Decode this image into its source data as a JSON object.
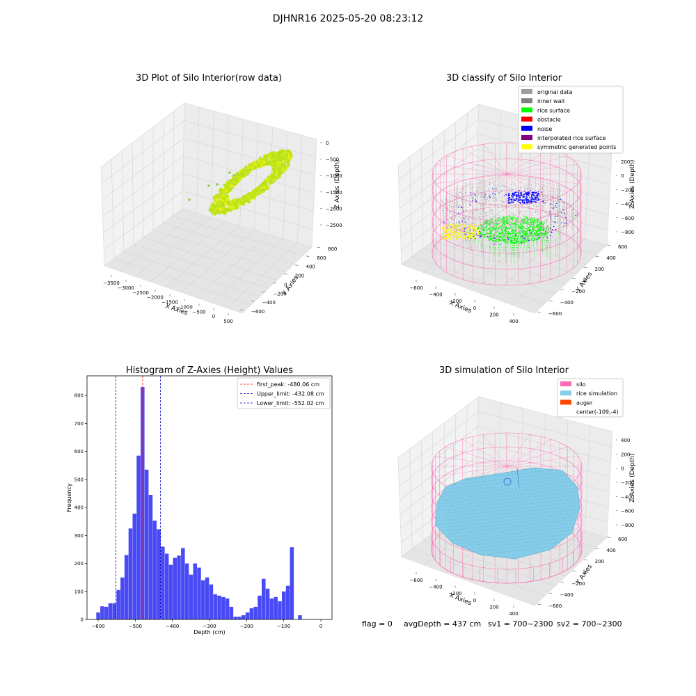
{
  "suptitle": "DJHNR16 2025-05-20 08:23:12",
  "footer": {
    "flag": "flag = 0",
    "avg": "avgDepth = 437 cm",
    "sv1": "sv1 = 700~2300",
    "sv2": "sv2 = 700~2300"
  },
  "colors": {
    "gray_pts": "#9e9e9e",
    "inner_wall": "#808080",
    "rice_green": "#00ff00",
    "obstacle": "#ff0000",
    "noise": "#0000ff",
    "interp": "#800080",
    "symmetric": "#ffff00",
    "silo_pink": "#ff69b4",
    "rice_sim": "#87ceeb",
    "auger": "#ff4500",
    "hist_bar": "#4a4af5"
  },
  "chart_data": [
    {
      "type": "scatter3d",
      "title": "3D Plot of Silo Interior(row data)",
      "xlabel": "X Axies",
      "ylabel": "Y Axies",
      "zlabel": "Z Axies (Depth)",
      "xticks": [
        "−3500",
        "−3000",
        "−2500",
        "−2000",
        "−1500",
        "−1000",
        "−500",
        "0",
        "500"
      ],
      "yticks": [
        "−600",
        "−400",
        "−200",
        "0",
        "200",
        "400",
        "600",
        "800"
      ],
      "zticks": [
        "0",
        "−500",
        "−1000",
        "−1500",
        "−2000",
        "−2500"
      ]
    },
    {
      "type": "scatter3d",
      "title": "3D classify of Silo Interior",
      "xlabel": "X Axies",
      "ylabel": "Y Axies",
      "zlabel": "Z Axies (Depth)",
      "xticks": [
        "−600",
        "−400",
        "−200",
        "0",
        "200",
        "400"
      ],
      "yticks": [
        "−600",
        "−400",
        "−200",
        "0",
        "200",
        "400",
        "600"
      ],
      "zticks": [
        "200",
        "0",
        "−200",
        "−400",
        "−600",
        "−800"
      ],
      "legend": [
        "original data",
        "inner wall",
        "rice surface",
        "obstacle",
        "noise",
        "interpolated rice surface",
        "symmetric generated points"
      ],
      "legend_loc": "upper right"
    },
    {
      "type": "bar",
      "title": "Histogram of Z-Axies (Height) Values",
      "xlabel": "Depth (cm)",
      "ylabel": "Frequency",
      "xlim": [
        -630,
        30
      ],
      "ylim": [
        0,
        870
      ],
      "xticks": [
        -600,
        -500,
        -400,
        -300,
        -200,
        -100,
        0
      ],
      "xticklabels": [
        "−600",
        "−500",
        "−400",
        "−300",
        "−200",
        "−100",
        "0"
      ],
      "yticks": [
        0,
        100,
        200,
        300,
        400,
        500,
        600,
        700,
        800
      ],
      "bin_width": 10.87,
      "bin_start": -605,
      "values": [
        25,
        47,
        45,
        58,
        58,
        105,
        150,
        230,
        325,
        378,
        585,
        830,
        535,
        445,
        353,
        322,
        260,
        235,
        195,
        220,
        228,
        255,
        200,
        160,
        200,
        185,
        140,
        150,
        125,
        90,
        85,
        80,
        75,
        45,
        10,
        10,
        15,
        25,
        40,
        45,
        85,
        145,
        110,
        75,
        80,
        65,
        100,
        120,
        258,
        0,
        15
      ],
      "lines": [
        {
          "name": "first_peak: -480.06 cm",
          "x": -480.06,
          "color": "#ff0000"
        },
        {
          "name": "Upper_limit: -432.08 cm",
          "x": -432.08,
          "color": "#0000cc"
        },
        {
          "name": "Lower_limit: -552.02 cm",
          "x": -552.02,
          "color": "#0000cc"
        }
      ],
      "legend_loc": "upper right"
    },
    {
      "type": "surface3d",
      "title": "3D simulation of Silo Interior",
      "xlabel": "X Axies",
      "ylabel": "Y Axies",
      "zlabel": "Z Axies (Depth)",
      "xticks": [
        "−600",
        "−400",
        "−200",
        "0",
        "200",
        "400"
      ],
      "yticks": [
        "−600",
        "−400",
        "−200",
        "0",
        "200",
        "400",
        "600"
      ],
      "zticks": [
        "400",
        "200",
        "0",
        "−200",
        "−400",
        "−600",
        "−800"
      ],
      "legend": [
        "silo",
        "rice simulation",
        "auger",
        "center(-109,-4)"
      ],
      "legend_loc": "upper right"
    }
  ]
}
